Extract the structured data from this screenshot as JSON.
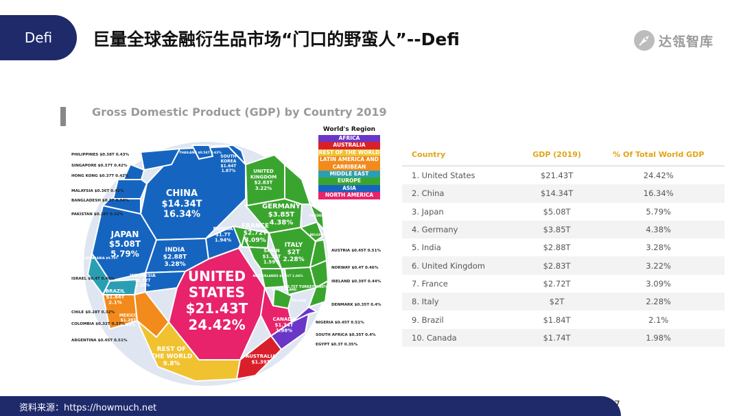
{
  "slide": {
    "tag": "Defi",
    "title": "巨量全球金融衍生品市场“门口的野蛮人”--Defi",
    "logo_text": "达瓴智库",
    "source": "资料来源：https://howmuch.net",
    "page": "7"
  },
  "colors": {
    "navy": "#1f2a6b",
    "asia": "#1565c0",
    "europe": "#3aa52e",
    "north_america": "#e8226b",
    "latin_america": "#f28a1c",
    "rest_of_world": "#f0c22f",
    "middle_east": "#2a9fb4",
    "africa": "#6a36c8",
    "australia": "#d9202a"
  },
  "chart_data": [
    {
      "type": "bubble",
      "title": "Gross Domestic Product (GDP) by Country 2019",
      "legend": {
        "title": "World's Region",
        "items": [
          {
            "label": "AFRICA",
            "color": "#6a36c8"
          },
          {
            "label": "AUSTRALIA",
            "color": "#d9202a"
          },
          {
            "label": "REST OF THE WORLD",
            "color": "#f0c22f"
          },
          {
            "label": "LATIN AMERICA AND CARRIBEAN",
            "color": "#f28a1c"
          },
          {
            "label": "MIDDLE EAST",
            "color": "#2a9fb4"
          },
          {
            "label": "EUROPE",
            "color": "#3aa52e"
          },
          {
            "label": "ASIA",
            "color": "#1565c0"
          },
          {
            "label": "NORTH AMERICA",
            "color": "#e8226b"
          }
        ]
      },
      "regions": [
        {
          "name": "UNITED STATES",
          "value": "$21.43T",
          "share": "24.42%",
          "region": "north_america"
        },
        {
          "name": "CHINA",
          "value": "$14.34T",
          "share": "16.34%",
          "region": "asia"
        },
        {
          "name": "JAPAN",
          "value": "$5.08T",
          "share": "5.79%",
          "region": "asia"
        },
        {
          "name": "GERMANY",
          "value": "$3.85T",
          "share": "4.38%",
          "region": "europe"
        },
        {
          "name": "INDIA",
          "value": "$2.88T",
          "share": "3.28%",
          "region": "asia"
        },
        {
          "name": "UNITED KINGDOM",
          "value": "$2.83T",
          "share": "3.22%",
          "region": "europe"
        },
        {
          "name": "FRANCE",
          "value": "$2.72T",
          "share": "3.09%",
          "region": "europe"
        },
        {
          "name": "ITALY",
          "value": "$2T",
          "share": "2.28%",
          "region": "europe"
        },
        {
          "name": "BRAZIL",
          "value": "$1.84T",
          "share": "2.1%",
          "region": "latin_america"
        },
        {
          "name": "CANADA",
          "value": "$1.74T",
          "share": "1.98%",
          "region": "north_america"
        },
        {
          "name": "RUSSIA",
          "value": "$1.7T",
          "share": "1.94%",
          "region": "europe"
        },
        {
          "name": "SOUTH KOREA",
          "value": "$1.64T",
          "share": "1.87%",
          "region": "asia"
        },
        {
          "name": "SPAIN",
          "value": "$1.39T",
          "share": "1.59%",
          "region": "europe"
        },
        {
          "name": "MEXICO",
          "value": "$1.26T",
          "share": "1.43%",
          "region": "latin_america"
        },
        {
          "name": "INDONESIA",
          "value": "$1.12T",
          "share": "1.28%",
          "region": "asia"
        },
        {
          "name": "REST OF THE WORLD",
          "value": "",
          "share": "9.8%",
          "region": "rest_of_world"
        },
        {
          "name": "AUSTRALIA",
          "value": "$1.39T",
          "share": "",
          "region": "australia"
        }
      ],
      "side_labels_left": [
        "PHILIPPINES $0.38T 0.43%",
        "SINGAPORE $0.37T 0.42%",
        "HONG KONG $0.37T 0.42%",
        "MALAYSIA $0.36T 0.42%",
        "BANGLADESH $0.3T 0.34%",
        "PAKISTAN $0.28T 0.32%",
        "ISRAEL $0.4T 0.46%",
        "CHILE $0.28T 0.32%",
        "COLOMBIA $0.32T 0.37%",
        "ARGENTINA $0.45T 0.51%"
      ],
      "side_labels_right": [
        "AUSTRIA $0.45T 0.51%",
        "NORWAY $0.4T 0.46%",
        "IRELAND $0.39T 0.44%",
        "DENMARK $0.35T 0.4%",
        "NIGERIA $0.45T 0.51%",
        "SOUTH AFRICA $0.35T 0.4%",
        "EGYPT $0.3T 0.35%"
      ],
      "small_labels": {
        "thailand": "THAILAND $0.54T 0.62%",
        "saudi": "SAUDI ARABIA $0.79T",
        "netherlands": "NETHERLANDS $0.91T 1.04%",
        "swiss": "SWITZERLAND",
        "poland": "POLAND",
        "turkey": "$0.75T TURKEY 0.86%",
        "sweden": "SWEDEN",
        "belgium": "BELGIUM"
      }
    },
    {
      "type": "table",
      "columns": [
        "Country",
        "GDP (2019)",
        "% Of Total World GDP"
      ],
      "rows": [
        [
          "1. United States",
          "$21.43T",
          "24.42%"
        ],
        [
          "2. China",
          "$14.34T",
          "16.34%"
        ],
        [
          "3. Japan",
          "$5.08T",
          "5.79%"
        ],
        [
          "4. Germany",
          "$3.85T",
          "4.38%"
        ],
        [
          "5. India",
          "$2.88T",
          "3.28%"
        ],
        [
          "6. United Kingdom",
          "$2.83T",
          "3.22%"
        ],
        [
          "7. France",
          "$2.72T",
          "3.09%"
        ],
        [
          "8. Italy",
          "$2T",
          "2.28%"
        ],
        [
          "9. Brazil",
          "$1.84T",
          "2.1%"
        ],
        [
          "10. Canada",
          "$1.74T",
          "1.98%"
        ]
      ]
    }
  ]
}
